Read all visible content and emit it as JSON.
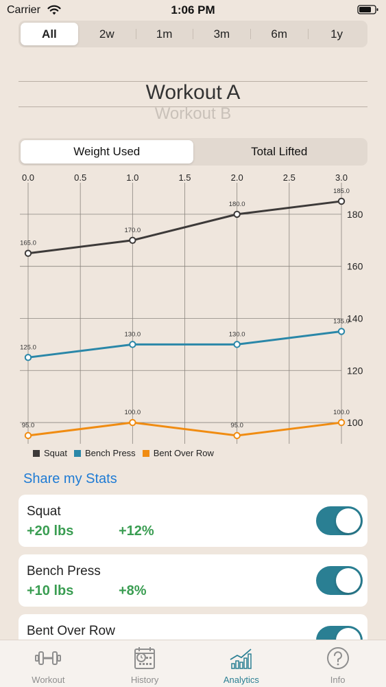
{
  "status_bar": {
    "carrier": "Carrier",
    "time": "1:06 PM"
  },
  "range_tabs": [
    {
      "label": "All",
      "active": true
    },
    {
      "label": "2w",
      "active": false
    },
    {
      "label": "1m",
      "active": false
    },
    {
      "label": "3m",
      "active": false
    },
    {
      "label": "6m",
      "active": false
    },
    {
      "label": "1y",
      "active": false
    }
  ],
  "workout_picker": {
    "selected": "Workout A",
    "next": "Workout B"
  },
  "metric_toggle": {
    "options": [
      "Weight Used",
      "Total Lifted"
    ],
    "selected": "Weight Used"
  },
  "chart_data": {
    "type": "line",
    "x": [
      0,
      1,
      2,
      3
    ],
    "x_ticks": [
      "0.0",
      "0.5",
      "1.0",
      "1.5",
      "2.0",
      "2.5",
      "3.0"
    ],
    "y_ticks": [
      "100",
      "120",
      "140",
      "160",
      "180"
    ],
    "ylim": [
      95,
      190
    ],
    "xlim": [
      0,
      3
    ],
    "grid": true,
    "series": [
      {
        "name": "Squat",
        "color": "#3d3a39",
        "values": [
          165,
          170,
          180,
          185
        ],
        "labels": [
          "165.0",
          "170.0",
          "180.0",
          "185.0"
        ]
      },
      {
        "name": "Bench Press",
        "color": "#2a87a8",
        "values": [
          125,
          130,
          130,
          135
        ],
        "labels": [
          "125.0",
          "130.0",
          "130.0",
          "135.0"
        ]
      },
      {
        "name": "Bent Over Row",
        "color": "#f08c12",
        "values": [
          95,
          100,
          95,
          100
        ],
        "labels": [
          "95.0",
          "100.0",
          "95.0",
          "100.0"
        ]
      }
    ],
    "legend_placement": "bottom-left"
  },
  "share_link": "Share my Stats",
  "stats": [
    {
      "name": "Squat",
      "delta": "+20 lbs",
      "percent": "+12%",
      "enabled": true
    },
    {
      "name": "Bench Press",
      "delta": "+10 lbs",
      "percent": "+8%",
      "enabled": true
    },
    {
      "name": "Bent Over Row",
      "delta": "",
      "percent": "",
      "enabled": true
    }
  ],
  "tab_bar": [
    {
      "label": "Workout",
      "icon": "dumbbell-icon",
      "active": false
    },
    {
      "label": "History",
      "icon": "calendar-clock-icon",
      "active": false
    },
    {
      "label": "Analytics",
      "icon": "bar-chart-icon",
      "active": true
    },
    {
      "label": "Info",
      "icon": "question-circle-icon",
      "active": false
    }
  ]
}
